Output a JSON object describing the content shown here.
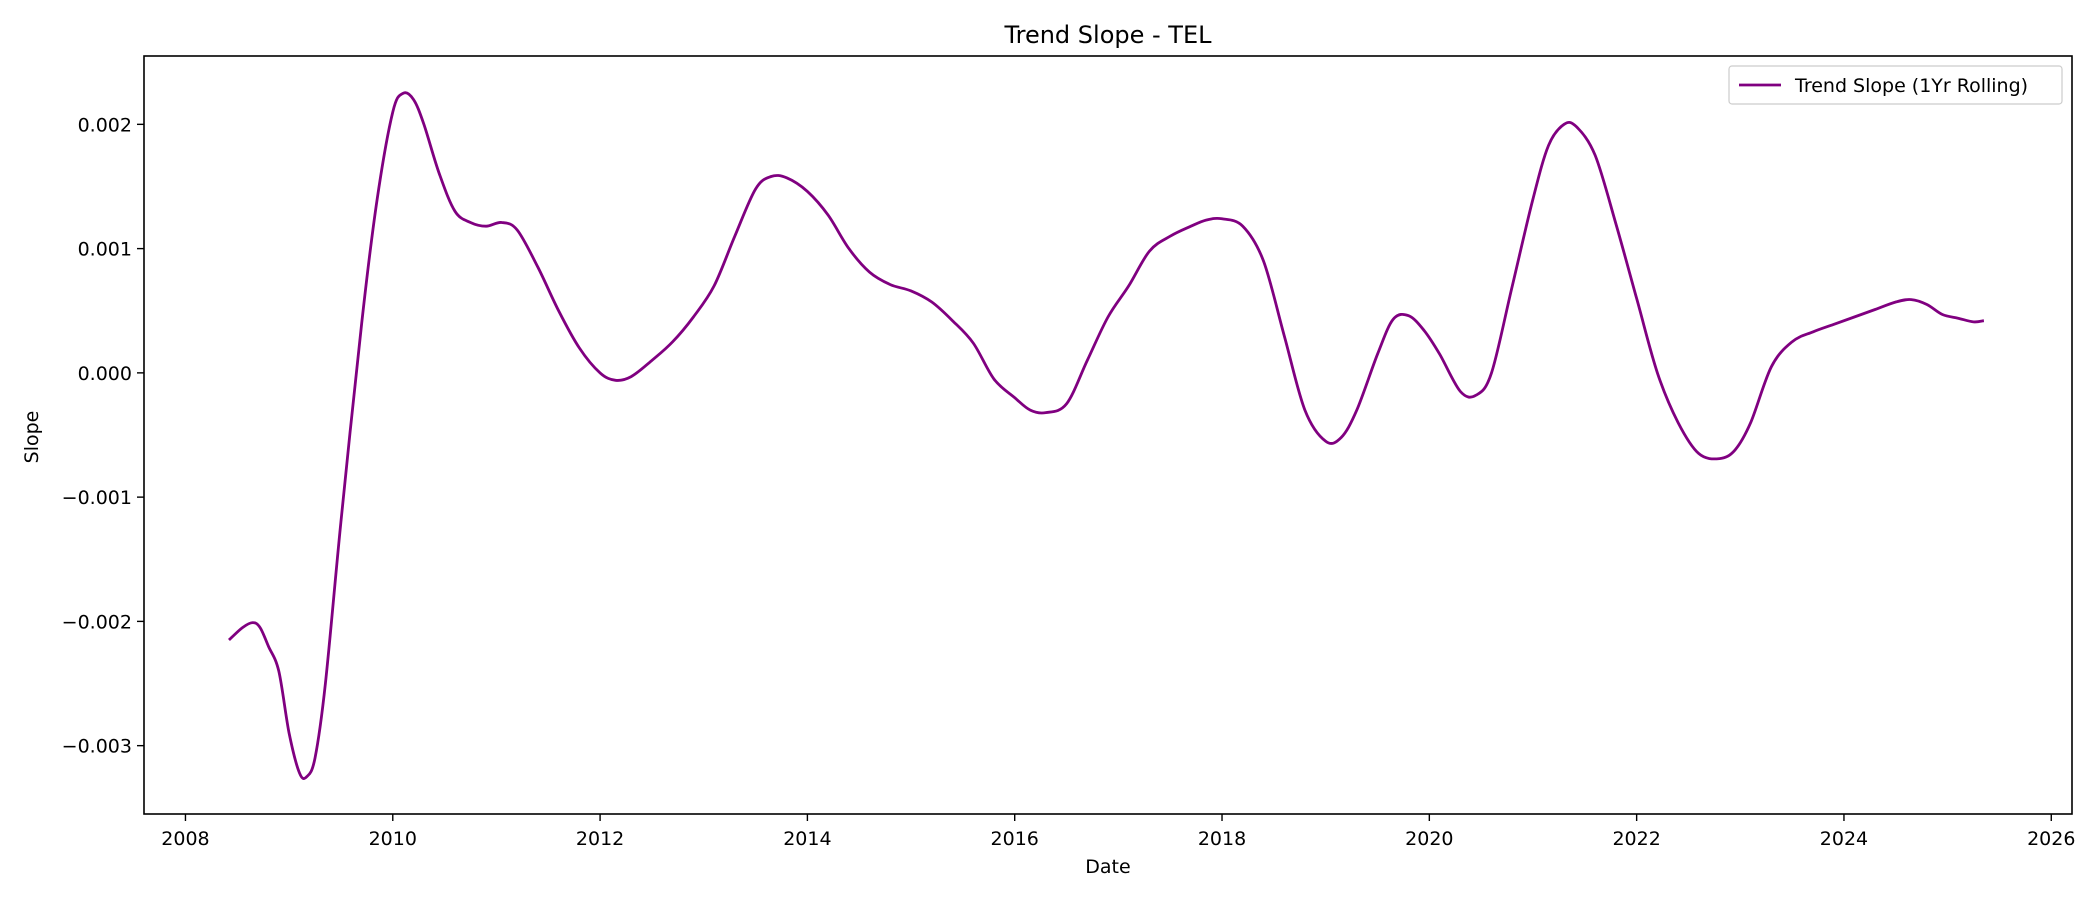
{
  "chart_data": {
    "type": "line",
    "title": "Trend Slope - TEL",
    "xlabel": "Date",
    "ylabel": "Slope",
    "xlim": [
      2007.6,
      2026.2
    ],
    "ylim": [
      -0.00355,
      0.00255
    ],
    "x_ticks": [
      2008,
      2010,
      2012,
      2014,
      2016,
      2018,
      2020,
      2022,
      2024,
      2026
    ],
    "x_tick_labels": [
      "2008",
      "2010",
      "2012",
      "2014",
      "2016",
      "2018",
      "2020",
      "2022",
      "2024",
      "2026"
    ],
    "y_ticks": [
      -0.003,
      -0.002,
      -0.001,
      0.0,
      0.001,
      0.002
    ],
    "y_tick_labels": [
      "−0.003",
      "−0.002",
      "−0.001",
      "0.000",
      "0.001",
      "0.002"
    ],
    "grid": false,
    "legend_position": "top-right",
    "series": [
      {
        "name": "Trend Slope (1Yr Rolling)",
        "color": "#800080",
        "x": [
          2008.42,
          2008.55,
          2008.65,
          2008.72,
          2008.8,
          2008.9,
          2009.0,
          2009.1,
          2009.17,
          2009.25,
          2009.35,
          2009.5,
          2009.7,
          2009.85,
          2010.0,
          2010.1,
          2010.2,
          2010.3,
          2010.45,
          2010.6,
          2010.75,
          2010.9,
          2011.05,
          2011.2,
          2011.4,
          2011.6,
          2011.8,
          2012.0,
          2012.15,
          2012.3,
          2012.5,
          2012.7,
          2012.9,
          2013.1,
          2013.3,
          2013.5,
          2013.65,
          2013.8,
          2014.0,
          2014.2,
          2014.4,
          2014.6,
          2014.8,
          2015.0,
          2015.2,
          2015.4,
          2015.6,
          2015.8,
          2016.0,
          2016.15,
          2016.3,
          2016.5,
          2016.7,
          2016.9,
          2017.1,
          2017.3,
          2017.5,
          2017.7,
          2017.85,
          2018.0,
          2018.2,
          2018.4,
          2018.6,
          2018.8,
          2019.0,
          2019.15,
          2019.3,
          2019.5,
          2019.65,
          2019.8,
          2019.95,
          2020.1,
          2020.3,
          2020.45,
          2020.6,
          2020.8,
          2021.0,
          2021.15,
          2021.3,
          2021.42,
          2021.6,
          2021.8,
          2022.0,
          2022.2,
          2022.4,
          2022.6,
          2022.8,
          2022.95,
          2023.1,
          2023.3,
          2023.5,
          2023.7,
          2023.9,
          2024.1,
          2024.3,
          2024.5,
          2024.65,
          2024.8,
          2024.95,
          2025.1,
          2025.25,
          2025.35
        ],
        "y": [
          -0.00215,
          -0.00205,
          -0.00201,
          -0.00205,
          -0.0022,
          -0.0024,
          -0.0029,
          -0.00322,
          -0.00325,
          -0.0031,
          -0.0025,
          -0.0012,
          0.0004,
          0.0014,
          0.0021,
          0.00225,
          0.0022,
          0.002,
          0.0016,
          0.0013,
          0.00121,
          0.00118,
          0.00121,
          0.00115,
          0.00085,
          0.0005,
          0.0002,
          0.0,
          -6e-05,
          -3e-05,
          0.0001,
          0.00025,
          0.00045,
          0.0007,
          0.0011,
          0.00148,
          0.00158,
          0.00157,
          0.00146,
          0.00127,
          0.001,
          0.00081,
          0.00071,
          0.00066,
          0.00057,
          0.00042,
          0.00024,
          -5e-05,
          -0.0002,
          -0.0003,
          -0.00032,
          -0.00025,
          0.0001,
          0.00045,
          0.0007,
          0.00098,
          0.0011,
          0.00118,
          0.00123,
          0.00124,
          0.00118,
          0.0009,
          0.0003,
          -0.0003,
          -0.00055,
          -0.00052,
          -0.0003,
          0.00015,
          0.00043,
          0.00046,
          0.00034,
          0.00015,
          -0.00015,
          -0.00018,
          0.0,
          0.0007,
          0.0014,
          0.00183,
          0.002,
          0.00198,
          0.00175,
          0.0012,
          0.0006,
          0.0,
          -0.0004,
          -0.00065,
          -0.00069,
          -0.00062,
          -0.0004,
          5e-05,
          0.00025,
          0.00033,
          0.00039,
          0.00045,
          0.00051,
          0.00057,
          0.00059,
          0.00055,
          0.00047,
          0.00044,
          0.00041,
          0.00042
        ]
      }
    ]
  }
}
